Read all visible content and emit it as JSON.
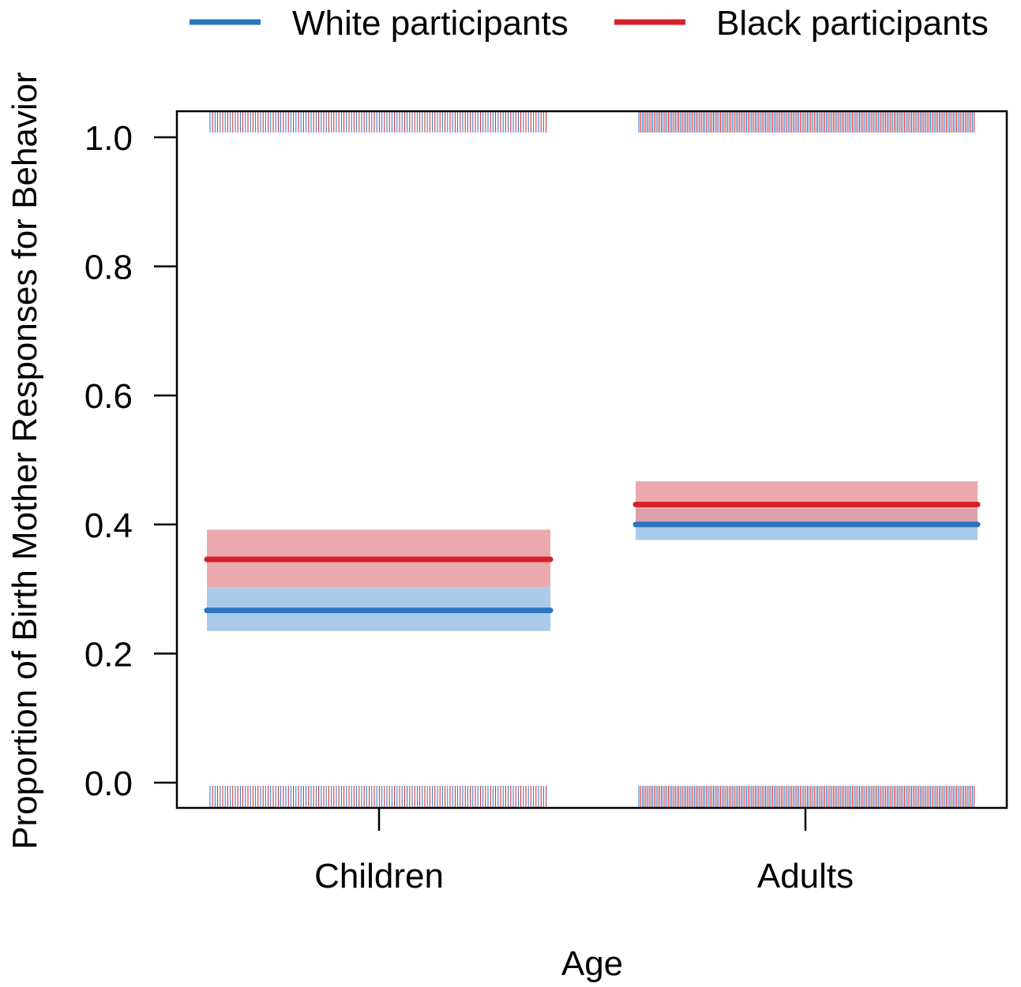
{
  "chart_data": {
    "type": "line",
    "title": "",
    "xlabel": "Age",
    "ylabel": "Proportion of Birth Mother Responses for Behavior",
    "categories": [
      "Children",
      "Adults"
    ],
    "ylim": [
      -0.04,
      1.04
    ],
    "yticks": [
      0.0,
      0.2,
      0.4,
      0.6,
      0.8,
      1.0
    ],
    "ytick_labels": [
      "0.0",
      "0.2",
      "0.4",
      "0.6",
      "0.8",
      "1.0"
    ],
    "legend_position": "top",
    "grid": false,
    "series": [
      {
        "name": "White participants",
        "color": "#2c75c0",
        "band_color": "#a9cbe9",
        "values": [
          0.267,
          0.4
        ],
        "ci_lower": [
          0.235,
          0.376
        ],
        "ci_upper": [
          0.303,
          0.424
        ]
      },
      {
        "name": "Black participants",
        "color": "#d4212a",
        "band_color": "#e7959a",
        "values": [
          0.346,
          0.431
        ],
        "ci_lower": [
          0.303,
          0.398
        ],
        "ci_upper": [
          0.392,
          0.467
        ]
      }
    ],
    "rug": {
      "colors": [
        "#2c75c0",
        "#d4212a"
      ],
      "levels": [
        0,
        1
      ]
    }
  }
}
